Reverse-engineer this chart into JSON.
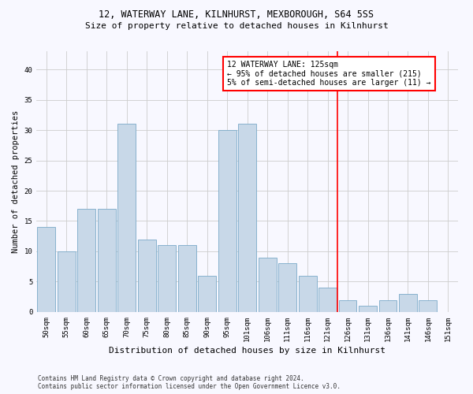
{
  "title1": "12, WATERWAY LANE, KILNHURST, MEXBOROUGH, S64 5SS",
  "title2": "Size of property relative to detached houses in Kilnhurst",
  "xlabel": "Distribution of detached houses by size in Kilnhurst",
  "ylabel": "Number of detached properties",
  "categories": [
    "50sqm",
    "55sqm",
    "60sqm",
    "65sqm",
    "70sqm",
    "75sqm",
    "80sqm",
    "85sqm",
    "90sqm",
    "95sqm",
    "101sqm",
    "106sqm",
    "111sqm",
    "116sqm",
    "121sqm",
    "126sqm",
    "131sqm",
    "136sqm",
    "141sqm",
    "146sqm",
    "151sqm"
  ],
  "values": [
    14,
    10,
    17,
    17,
    31,
    12,
    11,
    11,
    6,
    30,
    31,
    9,
    8,
    6,
    4,
    2,
    1,
    2,
    3,
    2,
    0
  ],
  "bar_color": "#c8d8e8",
  "bar_edgecolor": "#7aaac8",
  "annotation_text": "12 WATERWAY LANE: 125sqm\n← 95% of detached houses are smaller (215)\n5% of semi-detached houses are larger (11) →",
  "ylim": [
    0,
    43
  ],
  "yticks": [
    0,
    5,
    10,
    15,
    20,
    25,
    30,
    35,
    40
  ],
  "footer1": "Contains HM Land Registry data © Crown copyright and database right 2024.",
  "footer2": "Contains public sector information licensed under the Open Government Licence v3.0.",
  "background_color": "#f8f8ff",
  "grid_color": "#cccccc",
  "title1_fontsize": 8.5,
  "title2_fontsize": 8.0,
  "xlabel_fontsize": 8.0,
  "ylabel_fontsize": 7.5,
  "tick_fontsize": 6.5,
  "annot_fontsize": 7.0,
  "footer_fontsize": 5.5,
  "red_line_index": 14.5
}
